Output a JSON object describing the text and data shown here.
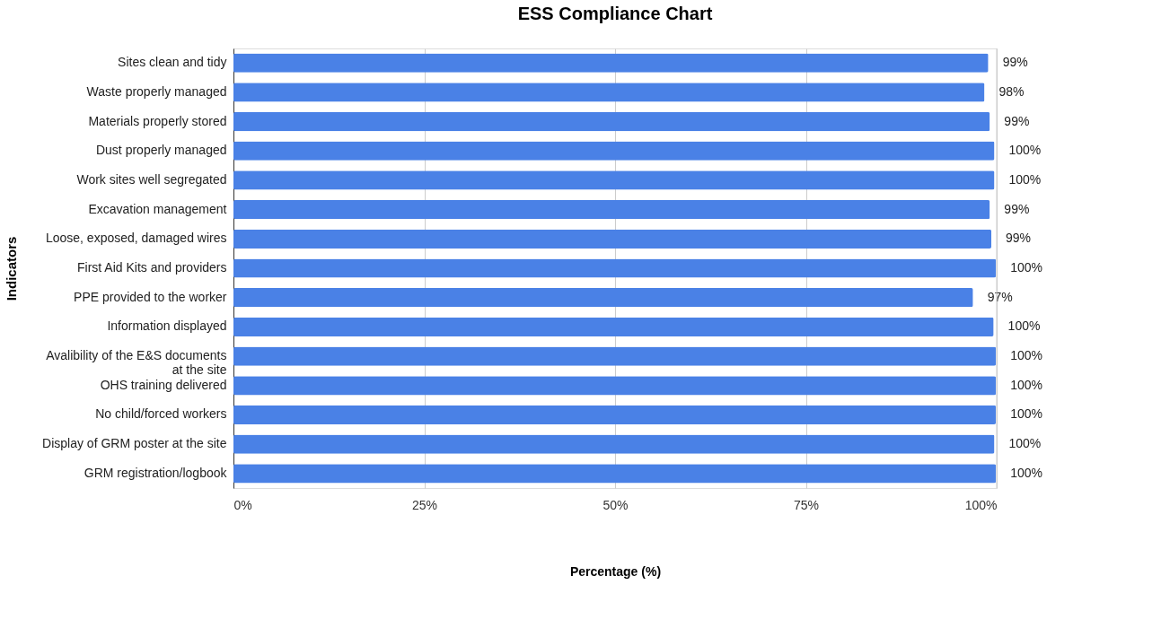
{
  "chart_data": {
    "type": "bar",
    "orientation": "horizontal",
    "title": "ESS Compliance Chart",
    "xlabel": "Percentage (%)",
    "ylabel": "Indicators",
    "categories": [
      "Sites clean and tidy",
      "Waste properly managed",
      "Materials properly stored",
      "Dust properly managed",
      "Work sites well segregated",
      "Excavation management",
      "Loose, exposed, damaged wires",
      "First Aid Kits and providers",
      "PPE provided to the worker",
      "Information displayed",
      "Avalibility of the E&S documents\nat the site",
      "OHS training delivered",
      "No child/forced workers",
      "Display of GRM poster at the site",
      "GRM registration/logbook"
    ],
    "values": [
      98.9,
      98.4,
      99.1,
      99.7,
      99.7,
      99.1,
      99.3,
      99.9,
      96.9,
      99.6,
      99.9,
      99.9,
      99.9,
      99.7,
      99.9
    ],
    "value_labels": [
      "99%",
      "98%",
      "99%",
      "100%",
      "100%",
      "99%",
      "99%",
      "100%",
      "97%",
      "100%",
      "100%",
      "100%",
      "100%",
      "100%",
      "100%"
    ],
    "color": "#4a81e6",
    "xlim": [
      0,
      100
    ],
    "xticks": [
      {
        "value": 0,
        "label": "0%"
      },
      {
        "value": 25,
        "label": "25%"
      },
      {
        "value": 50,
        "label": "50%"
      },
      {
        "value": 75,
        "label": "75%"
      },
      {
        "value": 100,
        "label": "100%"
      }
    ],
    "grid": "x"
  }
}
